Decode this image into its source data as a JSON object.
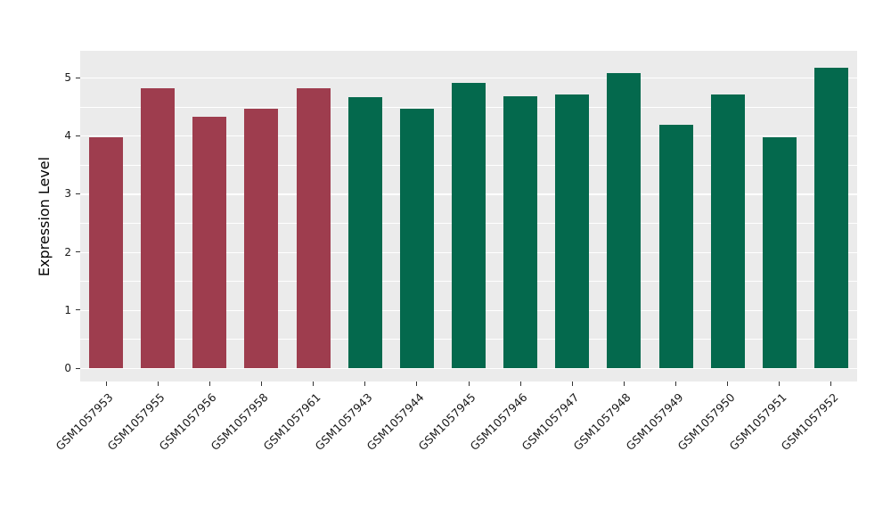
{
  "chart_data": {
    "type": "bar",
    "categories": [
      "GSM1057953",
      "GSM1057955",
      "GSM1057956",
      "GSM1057958",
      "GSM1057961",
      "GSM1057943",
      "GSM1057944",
      "GSM1057945",
      "GSM1057946",
      "GSM1057947",
      "GSM1057948",
      "GSM1057949",
      "GSM1057950",
      "GSM1057951",
      "GSM1057952"
    ],
    "values": [
      3.98,
      4.82,
      4.32,
      4.47,
      4.82,
      4.66,
      4.47,
      4.91,
      4.68,
      4.71,
      5.08,
      4.18,
      4.71,
      3.98,
      5.17
    ],
    "groups": [
      "group1",
      "group1",
      "group1",
      "group1",
      "group1",
      "group2",
      "group2",
      "group2",
      "group2",
      "group2",
      "group2",
      "group2",
      "group2",
      "group2",
      "group2"
    ],
    "group_colors": {
      "group1": "#9E3D4E",
      "group2": "#04694D"
    },
    "title": "",
    "xlabel": "",
    "ylabel": "Expression Level",
    "ylim": [
      0,
      5.46
    ],
    "yticks": [
      "0",
      "1",
      "2",
      "3",
      "4",
      "5"
    ],
    "grid": "on",
    "legend": "none",
    "panel_bg": "#EBEBEB",
    "grid_color": "#FFFFFF",
    "tick_color": "#333333",
    "label_color": "#1a1a1a"
  }
}
